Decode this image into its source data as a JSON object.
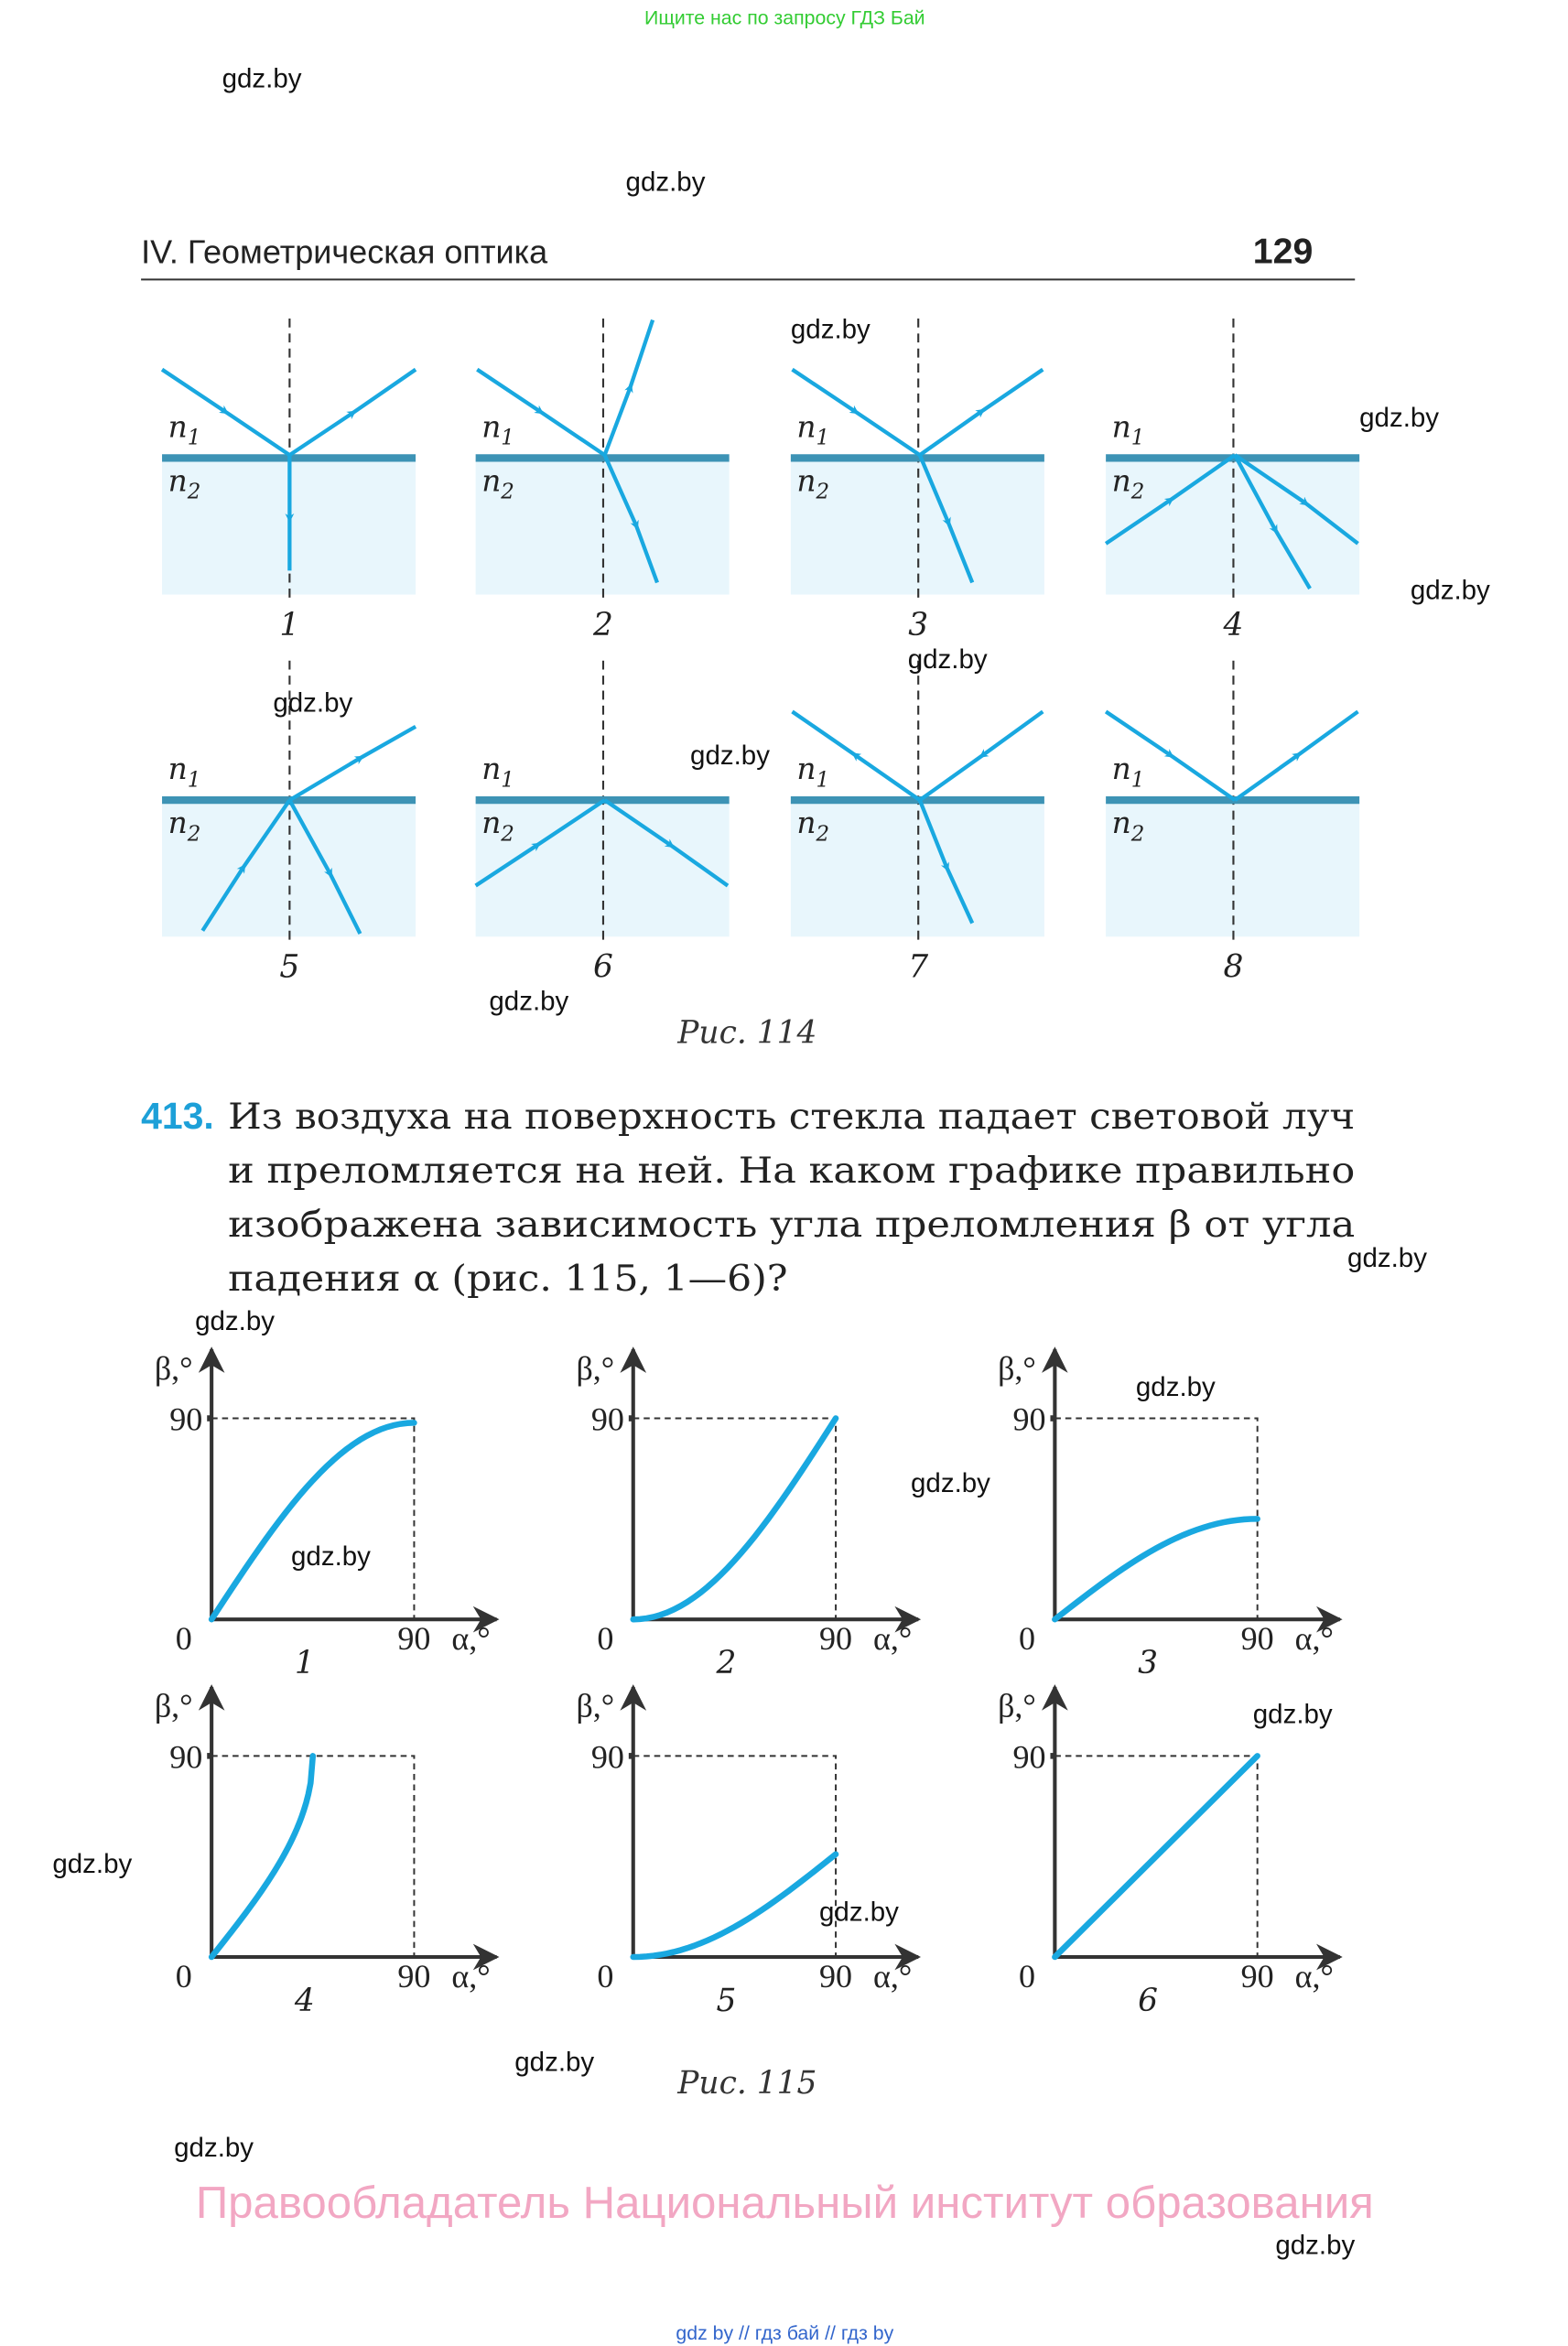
{
  "top_banner": "Ищите нас по запросу ГДЗ Бай",
  "watermark": "gdz.by",
  "header": {
    "section": "IV. Геометрическая оптика",
    "page_number": "129"
  },
  "figure114": {
    "caption": "Рис. 114",
    "medium_labels": {
      "n": "n",
      "sub1": "1",
      "sub2": "2"
    },
    "panels": [
      "1",
      "2",
      "3",
      "4",
      "5",
      "6",
      "7",
      "8"
    ]
  },
  "problem": {
    "number": "413.",
    "lines": [
      "Из воздуха на поверхность стекла падает световой луч",
      "и преломляется на ней. На каком графике правильно",
      "изображена зависимость угла преломления β от угла",
      "падения α (рис. 115, 1—6)?"
    ]
  },
  "figure115": {
    "caption": "Рис. 115"
  },
  "footer": {
    "copyright": "Правообладатель Национальный институт образования",
    "links": "gdz by  //  гдз бай  //  гдз by"
  },
  "colors": {
    "ray": "#19a8e0",
    "interface": "#3d93b5",
    "medium": "#e8f6fc",
    "problem_number": "#1da0d8",
    "banner": "#33cc33",
    "copyright": "#f2a7c3"
  },
  "chart_data": [
    {
      "type": "line",
      "label": "1",
      "xlabel": "α,°",
      "ylabel": "β,°",
      "xlim": [
        0,
        90
      ],
      "ylim": [
        0,
        90
      ],
      "x_ticks": [
        "0",
        "90"
      ],
      "y_ticks": [
        "90"
      ],
      "x": [
        0,
        15,
        30,
        45,
        60,
        75,
        90
      ],
      "y": [
        0,
        25,
        47,
        65,
        78,
        85,
        88
      ]
    },
    {
      "type": "line",
      "label": "2",
      "xlabel": "α,°",
      "ylabel": "β,°",
      "xlim": [
        0,
        90
      ],
      "ylim": [
        0,
        90
      ],
      "x_ticks": [
        "0",
        "90"
      ],
      "y_ticks": [
        "90"
      ],
      "x": [
        0,
        15,
        30,
        45,
        60,
        75,
        90
      ],
      "y": [
        0,
        3,
        12,
        26,
        45,
        67,
        90
      ]
    },
    {
      "type": "line",
      "label": "3",
      "xlabel": "α,°",
      "ylabel": "β,°",
      "xlim": [
        0,
        90
      ],
      "ylim": [
        0,
        90
      ],
      "x_ticks": [
        "0",
        "90"
      ],
      "y_ticks": [
        "90"
      ],
      "x": [
        0,
        15,
        30,
        45,
        60,
        75,
        90
      ],
      "y": [
        0,
        12,
        23,
        32,
        39,
        43,
        45
      ]
    },
    {
      "type": "line",
      "label": "4",
      "xlabel": "α,°",
      "ylabel": "β,°",
      "xlim": [
        0,
        90
      ],
      "ylim": [
        0,
        90
      ],
      "x_ticks": [
        "0",
        "90"
      ],
      "y_ticks": [
        "90"
      ],
      "x": [
        0,
        10,
        20,
        30,
        40,
        44,
        45
      ],
      "y": [
        0,
        13,
        26,
        42,
        63,
        80,
        90
      ]
    },
    {
      "type": "line",
      "label": "5",
      "xlabel": "α,°",
      "ylabel": "β,°",
      "xlim": [
        0,
        90
      ],
      "ylim": [
        0,
        90
      ],
      "x_ticks": [
        "0",
        "90"
      ],
      "y_ticks": [
        "90"
      ],
      "x": [
        0,
        15,
        30,
        45,
        60,
        75,
        90
      ],
      "y": [
        0,
        1,
        5,
        12,
        21,
        33,
        46
      ]
    },
    {
      "type": "line",
      "label": "6",
      "xlabel": "α,°",
      "ylabel": "β,°",
      "xlim": [
        0,
        90
      ],
      "ylim": [
        0,
        90
      ],
      "x_ticks": [
        "0",
        "90"
      ],
      "y_ticks": [
        "90"
      ],
      "x": [
        0,
        90
      ],
      "y": [
        0,
        90
      ]
    }
  ]
}
